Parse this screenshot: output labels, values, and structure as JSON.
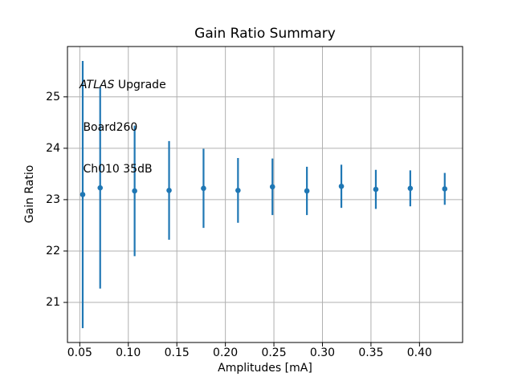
{
  "chart_data": {
    "type": "scatter",
    "subtype": "errorbar",
    "title": "Gain Ratio Summary",
    "xlabel": "Amplitudes [mA]",
    "ylabel": "Gain Ratio",
    "x": [
      0.053,
      0.071,
      0.1065,
      0.142,
      0.1775,
      0.213,
      0.2485,
      0.284,
      0.3195,
      0.355,
      0.3905,
      0.426
    ],
    "y": [
      23.1,
      23.23,
      23.17,
      23.18,
      23.22,
      23.18,
      23.25,
      23.17,
      23.26,
      23.2,
      23.22,
      23.21
    ],
    "yerr": [
      2.6,
      1.96,
      1.27,
      0.96,
      0.77,
      0.63,
      0.55,
      0.47,
      0.42,
      0.38,
      0.35,
      0.31
    ],
    "xlim": [
      0.0373,
      0.4444
    ],
    "ylim": [
      20.22,
      25.98
    ],
    "xticks": [
      0.05,
      0.1,
      0.15,
      0.2,
      0.25,
      0.3,
      0.35,
      0.4
    ],
    "xtick_labels": [
      "0.05",
      "0.10",
      "0.15",
      "0.20",
      "0.25",
      "0.30",
      "0.35",
      "0.40"
    ],
    "yticks": [
      21,
      22,
      23,
      24,
      25
    ],
    "ytick_labels": [
      "21",
      "22",
      "23",
      "24",
      "25"
    ],
    "grid": true,
    "legend_position": "none",
    "marker": "circle",
    "marker_color": "#1f77b4",
    "grid_color": "#b0b0b0",
    "spine_color": "#000000",
    "annotation": {
      "line1_italic": "ATLAS",
      "line1_rest": " Upgrade",
      "line2": " Board260",
      "line3": " Ch010 35dB"
    }
  }
}
